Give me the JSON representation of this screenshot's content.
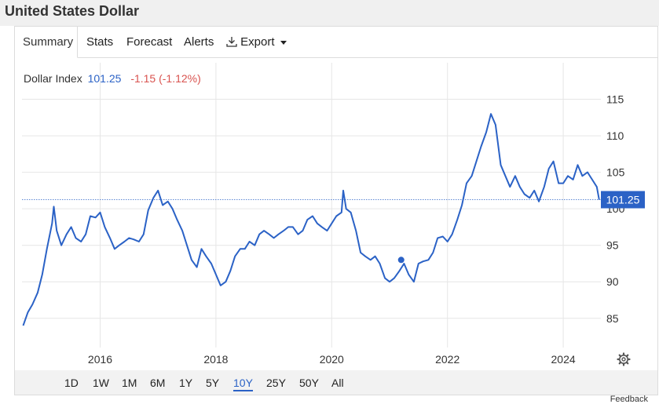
{
  "header": {
    "title": "United States Dollar"
  },
  "tabs": [
    {
      "label": "Summary",
      "active": true
    },
    {
      "label": "Stats"
    },
    {
      "label": "Forecast"
    },
    {
      "label": "Alerts"
    },
    {
      "label": "Export",
      "icon": "download-icon",
      "has_dropdown": true
    }
  ],
  "quote": {
    "name": "Dollar Index",
    "price": "101.25",
    "change": "-1.15 (-1.12%)"
  },
  "ranges": [
    "1D",
    "1W",
    "1M",
    "6M",
    "1Y",
    "5Y",
    "10Y",
    "25Y",
    "50Y",
    "All"
  ],
  "active_range": "10Y",
  "feedback": "Feedback",
  "colors": {
    "line": "#2b62c6",
    "negative": "#d9534f",
    "accent": "#2b62c6"
  },
  "chart_data": {
    "type": "line",
    "title": "",
    "xlabel": "",
    "ylabel": "",
    "x_ticks": [
      "2016",
      "2018",
      "2020",
      "2022",
      "2024"
    ],
    "y_ticks": [
      85,
      90,
      95,
      100,
      105,
      110,
      115
    ],
    "xlim": [
      2014.65,
      2024.65
    ],
    "ylim": [
      81,
      120
    ],
    "y_axis_position": "right",
    "grid": true,
    "reference_line": 101.25,
    "last_value_label": "101.25",
    "marker": {
      "x": 2021.2,
      "y": 93.0
    },
    "series": [
      {
        "x": [
          2014.67,
          2014.75,
          2014.83,
          2014.92,
          2015.0,
          2015.08,
          2015.17,
          2015.2,
          2015.25,
          2015.33,
          2015.42,
          2015.5,
          2015.58,
          2015.67,
          2015.75,
          2015.83,
          2015.92,
          2016.0,
          2016.08,
          2016.17,
          2016.25,
          2016.33,
          2016.42,
          2016.5,
          2016.58,
          2016.67,
          2016.75,
          2016.83,
          2016.92,
          2017.0,
          2017.08,
          2017.17,
          2017.25,
          2017.33,
          2017.42,
          2017.5,
          2017.58,
          2017.67,
          2017.75,
          2017.83,
          2017.92,
          2018.0,
          2018.08,
          2018.17,
          2018.25,
          2018.33,
          2018.42,
          2018.5,
          2018.58,
          2018.67,
          2018.75,
          2018.83,
          2018.92,
          2019.0,
          2019.08,
          2019.17,
          2019.25,
          2019.33,
          2019.42,
          2019.5,
          2019.58,
          2019.67,
          2019.75,
          2019.83,
          2019.92,
          2020.0,
          2020.08,
          2020.17,
          2020.2,
          2020.25,
          2020.33,
          2020.42,
          2020.5,
          2020.58,
          2020.67,
          2020.75,
          2020.83,
          2020.92,
          2021.0,
          2021.08,
          2021.17,
          2021.25,
          2021.33,
          2021.42,
          2021.5,
          2021.58,
          2021.67,
          2021.75,
          2021.83,
          2021.92,
          2022.0,
          2022.08,
          2022.17,
          2022.25,
          2022.33,
          2022.42,
          2022.5,
          2022.58,
          2022.67,
          2022.75,
          2022.83,
          2022.92,
          2023.0,
          2023.08,
          2023.17,
          2023.25,
          2023.33,
          2023.42,
          2023.5,
          2023.58,
          2023.67,
          2023.75,
          2023.83,
          2023.92,
          2024.0,
          2024.08,
          2024.17,
          2024.25,
          2024.33,
          2024.42,
          2024.5,
          2024.58,
          2024.62
        ],
        "values": [
          84.0,
          85.8,
          86.9,
          88.5,
          91.0,
          94.5,
          98.0,
          100.3,
          97.0,
          95.0,
          96.5,
          97.5,
          96.0,
          95.5,
          96.5,
          99.0,
          98.8,
          99.5,
          97.5,
          96.0,
          94.5,
          95.0,
          95.5,
          96.0,
          95.8,
          95.5,
          96.5,
          99.8,
          101.5,
          102.5,
          100.5,
          101.0,
          100.0,
          98.5,
          97.0,
          95.0,
          93.0,
          92.0,
          94.5,
          93.5,
          92.5,
          91.0,
          89.5,
          90.0,
          91.5,
          93.5,
          94.5,
          94.5,
          95.5,
          95.0,
          96.5,
          97.0,
          96.5,
          96.0,
          96.5,
          97.0,
          97.5,
          97.5,
          96.5,
          97.0,
          98.5,
          99.0,
          98.0,
          97.5,
          97.0,
          98.0,
          99.0,
          99.5,
          102.5,
          100.0,
          99.5,
          97.0,
          94.0,
          93.5,
          93.0,
          93.5,
          92.5,
          90.5,
          90.0,
          90.5,
          91.5,
          92.5,
          91.0,
          90.0,
          92.5,
          92.8,
          93.0,
          94.0,
          96.0,
          96.2,
          95.5,
          96.5,
          98.5,
          100.5,
          103.5,
          104.5,
          106.5,
          108.5,
          110.5,
          113.0,
          111.5,
          106.0,
          104.5,
          103.0,
          104.5,
          103.0,
          102.0,
          101.5,
          102.5,
          101.0,
          103.0,
          105.5,
          106.5,
          103.5,
          103.5,
          104.5,
          104.0,
          106.0,
          104.5,
          105.0,
          104.0,
          103.0,
          101.25
        ]
      }
    ]
  }
}
